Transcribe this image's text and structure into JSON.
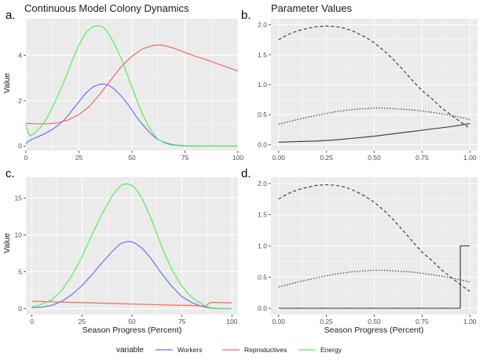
{
  "chart_data": [
    {
      "panel": "a.",
      "type": "line",
      "title": "Continuous Model Colony Dynamics",
      "xlabel": "",
      "ylabel": "Value",
      "xlim": [
        0,
        100
      ],
      "ylim": [
        -0.2,
        5.6
      ],
      "xticks": [
        0,
        25,
        50,
        75,
        100
      ],
      "yticks": [
        0,
        2,
        4
      ],
      "grid": true,
      "series": [
        {
          "name": "Workers",
          "color": "#6f6ff5",
          "x": [
            0,
            1,
            3,
            5,
            8,
            10,
            12,
            15,
            18,
            20,
            22,
            25,
            28,
            30,
            32,
            35,
            37,
            39,
            40,
            42,
            45,
            48,
            50,
            52,
            55,
            58,
            60,
            62,
            65,
            68,
            70,
            72,
            75,
            78,
            80,
            85,
            90,
            95,
            100
          ],
          "y": [
            0.1,
            0.2,
            0.3,
            0.38,
            0.5,
            0.6,
            0.7,
            0.9,
            1.15,
            1.35,
            1.6,
            1.95,
            2.3,
            2.48,
            2.62,
            2.72,
            2.73,
            2.68,
            2.62,
            2.48,
            2.2,
            1.85,
            1.58,
            1.3,
            0.95,
            0.63,
            0.45,
            0.3,
            0.17,
            0.09,
            0.05,
            0.03,
            0.01,
            0.005,
            0,
            0,
            0,
            0,
            0
          ]
        },
        {
          "name": "Reproductives",
          "color": "#f06a60",
          "x": [
            0,
            5,
            10,
            15,
            20,
            25,
            30,
            35,
            40,
            45,
            50,
            55,
            60,
            63,
            65,
            70,
            75,
            80,
            85,
            90,
            95,
            100
          ],
          "y": [
            1.0,
            0.98,
            0.98,
            1.02,
            1.15,
            1.38,
            1.75,
            2.3,
            2.9,
            3.5,
            3.95,
            4.28,
            4.43,
            4.45,
            4.43,
            4.3,
            4.12,
            3.95,
            3.8,
            3.63,
            3.47,
            3.3
          ]
        },
        {
          "name": "Energy",
          "color": "#55ee55",
          "x": [
            0,
            1,
            2,
            3,
            5,
            8,
            10,
            12,
            15,
            18,
            20,
            22,
            25,
            28,
            30,
            32,
            34,
            36,
            37,
            38,
            40,
            42,
            45,
            48,
            50,
            52,
            55,
            58,
            60,
            62,
            65,
            68,
            70,
            72,
            75,
            78,
            80,
            85,
            90,
            95,
            100
          ],
          "y": [
            1.0,
            0.6,
            0.45,
            0.5,
            0.65,
            0.95,
            1.25,
            1.6,
            2.2,
            2.85,
            3.3,
            3.8,
            4.45,
            4.95,
            5.15,
            5.27,
            5.3,
            5.25,
            5.18,
            5.08,
            4.8,
            4.45,
            3.85,
            3.1,
            2.6,
            2.1,
            1.4,
            0.85,
            0.55,
            0.32,
            0.15,
            0.06,
            0.03,
            0.01,
            0,
            0,
            0,
            0,
            0,
            0,
            0
          ]
        }
      ]
    },
    {
      "panel": "b.",
      "type": "line",
      "title": "Parameter Values",
      "xlabel": "",
      "ylabel": "",
      "xlim": [
        -0.04,
        1.04
      ],
      "ylim": [
        -0.1,
        2.1
      ],
      "xticks": [
        "0.00",
        "0.25",
        "0.50",
        "0.75",
        "1.00"
      ],
      "yticks": [
        "0.0",
        "0.5",
        "1.0",
        "1.5",
        "2.0"
      ],
      "grid": true,
      "series": [
        {
          "style": "dashed",
          "color": "#333333",
          "x": [
            0,
            0.05,
            0.1,
            0.15,
            0.2,
            0.25,
            0.3,
            0.35,
            0.4,
            0.45,
            0.5,
            0.55,
            0.6,
            0.65,
            0.7,
            0.75,
            0.8,
            0.85,
            0.9,
            0.95,
            1.0
          ],
          "y": [
            1.75,
            1.84,
            1.9,
            1.94,
            1.97,
            1.98,
            1.97,
            1.94,
            1.88,
            1.8,
            1.7,
            1.57,
            1.42,
            1.25,
            1.07,
            0.9,
            0.77,
            0.62,
            0.5,
            0.38,
            0.27
          ]
        },
        {
          "style": "dotted",
          "color": "#333333",
          "x": [
            0,
            0.1,
            0.2,
            0.3,
            0.4,
            0.5,
            0.55,
            0.6,
            0.7,
            0.8,
            0.9,
            1.0
          ],
          "y": [
            0.34,
            0.42,
            0.49,
            0.55,
            0.59,
            0.61,
            0.61,
            0.6,
            0.58,
            0.54,
            0.49,
            0.42
          ]
        },
        {
          "style": "solid",
          "color": "#333333",
          "x": [
            0,
            0.1,
            0.2,
            0.3,
            0.4,
            0.5,
            0.6,
            0.7,
            0.8,
            0.9,
            1.0
          ],
          "y": [
            0.04,
            0.05,
            0.06,
            0.08,
            0.11,
            0.14,
            0.18,
            0.22,
            0.26,
            0.3,
            0.35
          ]
        }
      ]
    },
    {
      "panel": "c.",
      "type": "line",
      "title": "",
      "xlabel": "Season Progress (Percent)",
      "ylabel": "Value",
      "xlim": [
        -3,
        103
      ],
      "ylim": [
        -0.8,
        17.8
      ],
      "xticks": [
        0,
        25,
        50,
        75,
        100
      ],
      "yticks": [
        0,
        5,
        10,
        15
      ],
      "grid": true,
      "series": [
        {
          "name": "Workers",
          "color": "#6f6ff5",
          "x": [
            0,
            5,
            10,
            15,
            20,
            25,
            30,
            35,
            40,
            43,
            45,
            48,
            50,
            52,
            55,
            58,
            60,
            65,
            70,
            75,
            80,
            85,
            88,
            90,
            95,
            100
          ],
          "y": [
            0.1,
            0.2,
            0.45,
            1.0,
            1.9,
            3.1,
            4.6,
            6.2,
            7.7,
            8.5,
            8.9,
            9.1,
            9.05,
            8.8,
            8.2,
            7.3,
            6.6,
            4.7,
            3.0,
            1.6,
            0.8,
            0.3,
            0.1,
            0.05,
            0,
            0
          ]
        },
        {
          "name": "Reproductives",
          "color": "#f06a60",
          "x": [
            0,
            10,
            20,
            30,
            40,
            50,
            60,
            70,
            80,
            85,
            87,
            88,
            90,
            95,
            100
          ],
          "y": [
            1.0,
            0.92,
            0.85,
            0.78,
            0.7,
            0.62,
            0.55,
            0.48,
            0.42,
            0.35,
            0.3,
            0.6,
            0.85,
            0.8,
            0.78
          ]
        },
        {
          "name": "Energy",
          "color": "#55ee55",
          "x": [
            0,
            3,
            5,
            10,
            15,
            20,
            25,
            30,
            35,
            40,
            43,
            45,
            47,
            48,
            50,
            52,
            55,
            58,
            60,
            65,
            70,
            75,
            80,
            85,
            88,
            90,
            95,
            100
          ],
          "y": [
            0.3,
            0.4,
            0.6,
            1.2,
            2.5,
            4.5,
            7.0,
            10.0,
            12.8,
            15.2,
            16.3,
            16.8,
            16.9,
            16.9,
            16.7,
            16.2,
            15.0,
            13.2,
            11.9,
            8.3,
            5.3,
            3.0,
            1.5,
            0.6,
            0.2,
            0.1,
            0,
            0
          ]
        }
      ]
    },
    {
      "panel": "d.",
      "type": "line",
      "title": "",
      "xlabel": "Season Progress (Percent)",
      "ylabel": "",
      "xlim": [
        -0.04,
        1.04
      ],
      "ylim": [
        -0.1,
        2.1
      ],
      "xticks": [
        "0.00",
        "0.25",
        "0.50",
        "0.75",
        "1.00"
      ],
      "yticks": [
        "0.0",
        "0.5",
        "1.0",
        "1.5",
        "2.0"
      ],
      "grid": true,
      "series": [
        {
          "style": "dashed",
          "color": "#333333",
          "x": [
            0,
            0.05,
            0.1,
            0.15,
            0.2,
            0.25,
            0.3,
            0.35,
            0.4,
            0.45,
            0.5,
            0.55,
            0.6,
            0.65,
            0.7,
            0.75,
            0.8,
            0.85,
            0.9,
            0.95,
            1.0
          ],
          "y": [
            1.75,
            1.84,
            1.9,
            1.94,
            1.97,
            1.98,
            1.97,
            1.94,
            1.88,
            1.8,
            1.7,
            1.57,
            1.42,
            1.25,
            1.07,
            0.9,
            0.77,
            0.62,
            0.5,
            0.38,
            0.27
          ]
        },
        {
          "style": "dotted",
          "color": "#333333",
          "x": [
            0,
            0.1,
            0.2,
            0.3,
            0.4,
            0.5,
            0.55,
            0.6,
            0.7,
            0.8,
            0.9,
            1.0
          ],
          "y": [
            0.34,
            0.42,
            0.49,
            0.55,
            0.59,
            0.61,
            0.61,
            0.6,
            0.58,
            0.54,
            0.49,
            0.42
          ]
        },
        {
          "style": "solid",
          "color": "#333333",
          "x": [
            0,
            0.95,
            0.95,
            1.0
          ],
          "y": [
            0,
            0,
            1.0,
            1.0
          ]
        }
      ]
    }
  ],
  "legend": {
    "title": "variable",
    "items": [
      {
        "label": "Workers",
        "color": "#6f6ff5"
      },
      {
        "label": "Reproductives",
        "color": "#f06a60"
      },
      {
        "label": "Energy",
        "color": "#55ee55"
      }
    ]
  },
  "colors": {
    "panel_bg": "#ebebeb",
    "grid": "#ffffff"
  }
}
